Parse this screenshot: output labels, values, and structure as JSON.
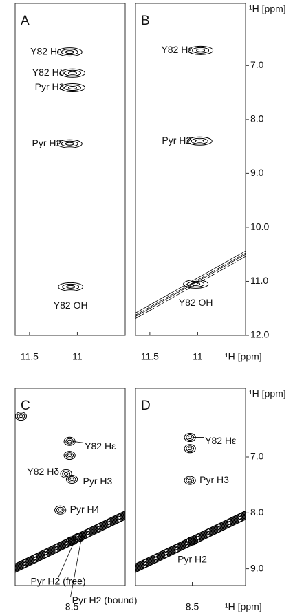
{
  "chart_data": [
    {
      "type": "nmr",
      "panel": "A",
      "xlim": [
        11.65,
        10.5
      ],
      "xticks": [
        11.5,
        11.0
      ],
      "ylim": [
        5.85,
        12.0
      ],
      "diagonal": false,
      "peaks": [
        {
          "label": "Y82 Hε",
          "x": 11.08,
          "y": 6.75
        },
        {
          "label": "Y82 Hδ",
          "x": 11.05,
          "y": 7.14
        },
        {
          "label": "Pyr H3",
          "x": 11.05,
          "y": 7.41
        },
        {
          "label": "Pyr H2",
          "x": 11.08,
          "y": 8.45
        },
        {
          "label": "Y82 OH",
          "x": 11.07,
          "y": 11.1
        }
      ]
    },
    {
      "type": "nmr",
      "panel": "B",
      "xlim": [
        11.65,
        10.5
      ],
      "xticks": [
        11.5,
        11.0
      ],
      "xlabel": "¹H [ppm]",
      "ylim": [
        5.85,
        12.0
      ],
      "yticks": [
        {
          "value": 7,
          "label": "7.0"
        },
        {
          "value": 8,
          "label": "8.0"
        },
        {
          "value": 9,
          "label": "9.0"
        },
        {
          "value": 10,
          "label": "10.0"
        },
        {
          "value": 11,
          "label": "11.0"
        },
        {
          "value": 12,
          "label": "12.0"
        }
      ],
      "ylabel": "¹H [ppm]",
      "diagonal": true,
      "peaks": [
        {
          "label": "Y82 Hε",
          "x": 10.97,
          "y": 6.72
        },
        {
          "label": "Pyr H2",
          "x": 10.98,
          "y": 8.4
        },
        {
          "label": "Y82 OH",
          "x": 11.02,
          "y": 11.05
        }
      ]
    },
    {
      "type": "nmr",
      "panel": "C",
      "xlim": [
        8.99,
        8.04
      ],
      "xticks": [
        8.5
      ],
      "ylim": [
        5.77,
        9.3
      ],
      "diagonal": true,
      "peaks": [
        {
          "label": "Y82 Hε",
          "x": 8.52,
          "y": 6.72
        },
        {
          "x": 8.52,
          "y": 6.97
        },
        {
          "label": "Y82 Hδ",
          "x": 8.55,
          "y": 7.3
        },
        {
          "label": "Pyr H3",
          "x": 8.5,
          "y": 7.4
        },
        {
          "label": "Pyr H4",
          "x": 8.6,
          "y": 7.95
        },
        {
          "label": "Pyr H2 (free)",
          "x": 8.5,
          "y": 8.5
        },
        {
          "label": "Pyr H2 (bound)",
          "x": 8.44,
          "y": 8.44
        },
        {
          "x": 8.94,
          "y": 6.27
        }
      ]
    },
    {
      "type": "nmr",
      "panel": "D",
      "xlim": [
        8.99,
        8.04
      ],
      "xticks": [
        8.5
      ],
      "xlabel": "¹H [ppm]",
      "ylim": [
        5.77,
        9.3
      ],
      "yticks": [
        {
          "value": 7,
          "label": "7.0"
        },
        {
          "value": 8,
          "label": "8.0"
        },
        {
          "value": 9,
          "label": "9.0"
        }
      ],
      "ylabel": "¹H [ppm]",
      "diagonal": true,
      "peaks": [
        {
          "label": "Y82 Hε",
          "x": 8.52,
          "y": 6.65
        },
        {
          "x": 8.52,
          "y": 6.85
        },
        {
          "label": "Pyr H3",
          "x": 8.52,
          "y": 7.42
        },
        {
          "label": "Pyr H2",
          "x": 8.5,
          "y": 8.5
        }
      ]
    }
  ]
}
